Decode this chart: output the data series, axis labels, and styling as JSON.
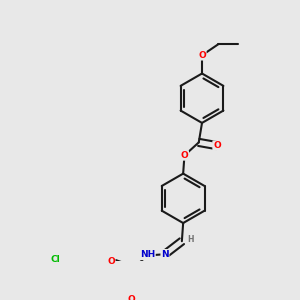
{
  "bg_color": "#e8e8e8",
  "bond_color": "#1a1a1a",
  "bond_width": 1.5,
  "dbo": 0.055,
  "atom_colors": {
    "O": "#ff0000",
    "N": "#0000cd",
    "Cl": "#00bb00",
    "H": "#707070",
    "C": "#1a1a1a"
  },
  "font_size": 6.5,
  "fig_width": 3.0,
  "fig_height": 3.0,
  "dpi": 100
}
